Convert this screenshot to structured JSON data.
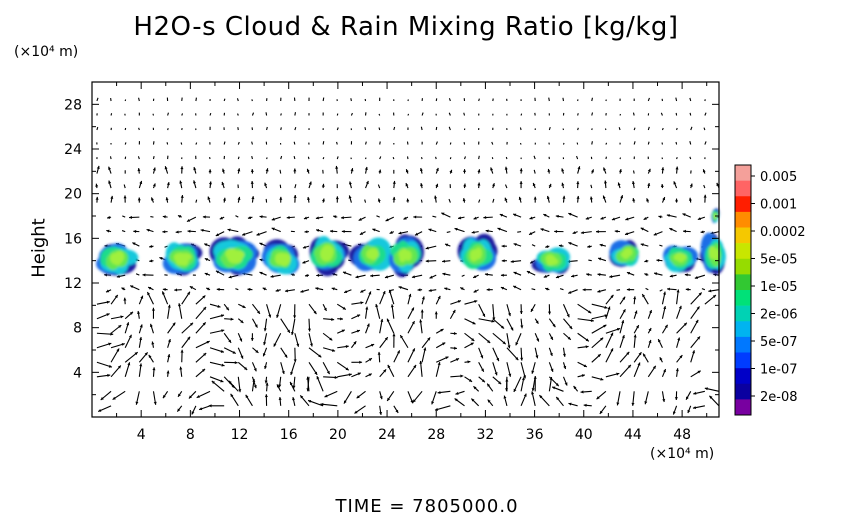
{
  "chart_data": {
    "type": "heatmap",
    "title": "H2O-s Cloud & Rain Mixing Ratio [kg/kg]",
    "ylabel": "Height",
    "y_unit": "(×10⁴ m)",
    "x_unit": "(×10⁴ m)",
    "xlim": [
      0,
      51
    ],
    "ylim": [
      0,
      30
    ],
    "xticks": [
      4,
      8,
      12,
      16,
      20,
      24,
      28,
      32,
      36,
      40,
      44,
      48
    ],
    "yticks": [
      4,
      8,
      12,
      16,
      20,
      24,
      28
    ],
    "colorbar": {
      "labels": [
        "0.005",
        "0.001",
        "0.0002",
        "5e-05",
        "1e-05",
        "2e-06",
        "5e-07",
        "1e-07",
        "2e-08"
      ],
      "colors": [
        "#f4a09a",
        "#ff6464",
        "#ff1e00",
        "#ff8c00",
        "#f5c800",
        "#c8e600",
        "#96dc00",
        "#32c832",
        "#00e178",
        "#00d2b4",
        "#00b4f0",
        "#0078ff",
        "#003cff",
        "#0000c8",
        "#0a00a0",
        "#7800a0"
      ]
    },
    "cloud_blobs": [
      {
        "x": 0.3,
        "y": 14.2,
        "w": 3.5,
        "h": 3.4
      },
      {
        "x": 5.6,
        "y": 14.2,
        "w": 3.4,
        "h": 3.2
      },
      {
        "x": 9.6,
        "y": 14.4,
        "w": 4.0,
        "h": 3.4
      },
      {
        "x": 14.0,
        "y": 14.2,
        "w": 3.0,
        "h": 3.4
      },
      {
        "x": 17.4,
        "y": 14.6,
        "w": 3.4,
        "h": 3.8
      },
      {
        "x": 21.2,
        "y": 14.6,
        "w": 3.2,
        "h": 3.2
      },
      {
        "x": 24.0,
        "y": 14.5,
        "w": 3.0,
        "h": 3.8
      },
      {
        "x": 29.8,
        "y": 14.6,
        "w": 3.0,
        "h": 3.6
      },
      {
        "x": 36.0,
        "y": 14.0,
        "w": 3.0,
        "h": 2.8
      },
      {
        "x": 42.2,
        "y": 14.6,
        "w": 2.6,
        "h": 2.6
      },
      {
        "x": 46.4,
        "y": 14.2,
        "w": 2.8,
        "h": 2.6
      },
      {
        "x": 49.6,
        "y": 14.6,
        "w": 2.0,
        "h": 3.8
      },
      {
        "x": 50.4,
        "y": 18.0,
        "w": 0.6,
        "h": 1.4
      }
    ],
    "grid": false
  },
  "footer": {
    "time_label": "TIME  =  7805000.0"
  }
}
